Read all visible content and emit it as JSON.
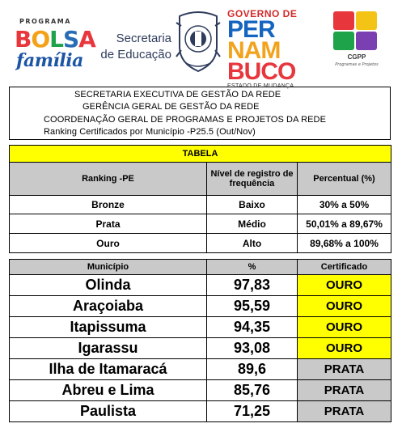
{
  "header": {
    "bolsa_top": "PROGRAMA",
    "bolsa_word": [
      "B",
      "O",
      "L",
      "S",
      "A"
    ],
    "bolsa_bottom": "família",
    "secretaria_line1": "Secretaria",
    "secretaria_line2": "de Educação",
    "governo": "GOVERNO DE",
    "per": "PER",
    "nam": "NAM",
    "buco": "BUCO",
    "estado": "ESTADO DE MUDANÇA",
    "cgpp_title": "CGPP",
    "cgpp_sub": "Programas e Projetos"
  },
  "title": {
    "line1": "SECRETARIA EXECUTIVA DE GESTÃO DA REDE",
    "line2": "GERÊNCIA GERAL DE GESTÃO DA REDE",
    "line3": "COORDENAÇÃO GERAL DE PROGRAMAS E PROJETOS DA REDE",
    "line4": "Ranking Certificados por Município -P25.5 (Out/Nov)"
  },
  "tabela": {
    "label": "TABELA",
    "headers": [
      "Ranking -PE",
      "Nível de registro de frequência",
      "Percentual (%)"
    ],
    "rows": [
      [
        "Bronze",
        "Baixo",
        "30% a 50%"
      ],
      [
        "Prata",
        "Médio",
        "50,01% a 89,67%"
      ],
      [
        "Ouro",
        "Alto",
        "89,68% a 100%"
      ]
    ]
  },
  "ranking": {
    "headers": [
      "Município",
      "%",
      "Certificado"
    ],
    "rows": [
      {
        "municipio": "Olinda",
        "percent": "97,83",
        "certificado": "OURO"
      },
      {
        "municipio": "Araçoiaba",
        "percent": "95,59",
        "certificado": "OURO"
      },
      {
        "municipio": "Itapissuma",
        "percent": "94,35",
        "certificado": "OURO"
      },
      {
        "municipio": "Igarassu",
        "percent": "93,08",
        "certificado": "OURO"
      },
      {
        "municipio": "Ilha de Itamaracá",
        "percent": "89,6",
        "certificado": "PRATA"
      },
      {
        "municipio": "Abreu e Lima",
        "percent": "85,76",
        "certificado": "PRATA"
      },
      {
        "municipio": "Paulista",
        "percent": "71,25",
        "certificado": "PRATA"
      }
    ]
  },
  "colors": {
    "ouro": "#ffff00",
    "prata": "#c9c9c9",
    "header_grey": "#c9c9c9",
    "tabela_yellow": "#ffff00"
  }
}
